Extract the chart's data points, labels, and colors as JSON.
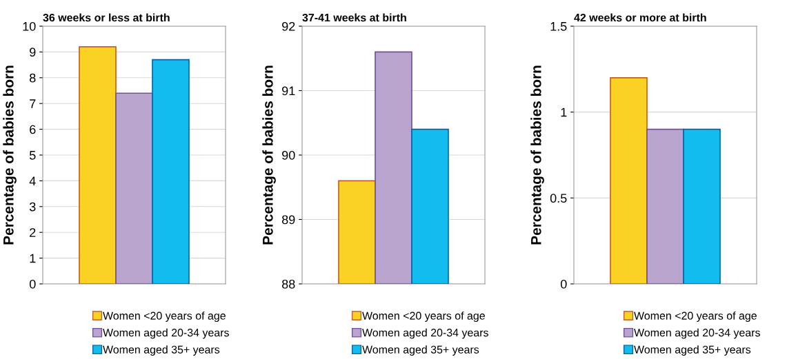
{
  "chart_data": [
    {
      "type": "bar",
      "title": "36 weeks or less at birth",
      "ylabel": "Percentage of babies born",
      "categories": [
        null
      ],
      "series": [
        {
          "name": "Women <20 years of age",
          "color": "#fbd123",
          "values": [
            9.2
          ]
        },
        {
          "name": "Women aged 20-34 years",
          "color": "#b9a4cd",
          "values": [
            7.4
          ]
        },
        {
          "name": "Women aged 35+ years",
          "color": "#12bcef",
          "values": [
            8.7
          ]
        }
      ],
      "ylim": [
        0,
        10
      ],
      "yticks": [
        0,
        1,
        2,
        3,
        4,
        5,
        6,
        7,
        8,
        9,
        10
      ],
      "grid": "y",
      "legend": "bottom"
    },
    {
      "type": "bar",
      "title": "37-41 weeks at birth",
      "ylabel": "Percentage of babies born",
      "categories": [
        null
      ],
      "series": [
        {
          "name": "Women <20 years of age",
          "color": "#fbd123",
          "values": [
            89.6
          ]
        },
        {
          "name": "Women aged 20-34 years",
          "color": "#b9a4cd",
          "values": [
            91.6
          ]
        },
        {
          "name": "Women aged 35+ years",
          "color": "#12bcef",
          "values": [
            90.4
          ]
        }
      ],
      "ylim": [
        88,
        92
      ],
      "yticks": [
        88,
        89,
        90,
        91,
        92
      ],
      "grid": "y",
      "legend": "bottom"
    },
    {
      "type": "bar",
      "title": "42 weeks or more at birth",
      "ylabel": "Percentage of babies born",
      "categories": [
        null
      ],
      "series": [
        {
          "name": "Women <20 years of age",
          "color": "#fbd123",
          "values": [
            1.2
          ]
        },
        {
          "name": "Women aged 20-34 years",
          "color": "#b9a4cd",
          "values": [
            0.9
          ]
        },
        {
          "name": "Women aged 35+ years",
          "color": "#12bcef",
          "values": [
            0.9
          ]
        }
      ],
      "ylim": [
        0,
        1.5
      ],
      "yticks": [
        0,
        0.5,
        1,
        1.5
      ],
      "grid": "y",
      "legend": "bottom"
    }
  ]
}
